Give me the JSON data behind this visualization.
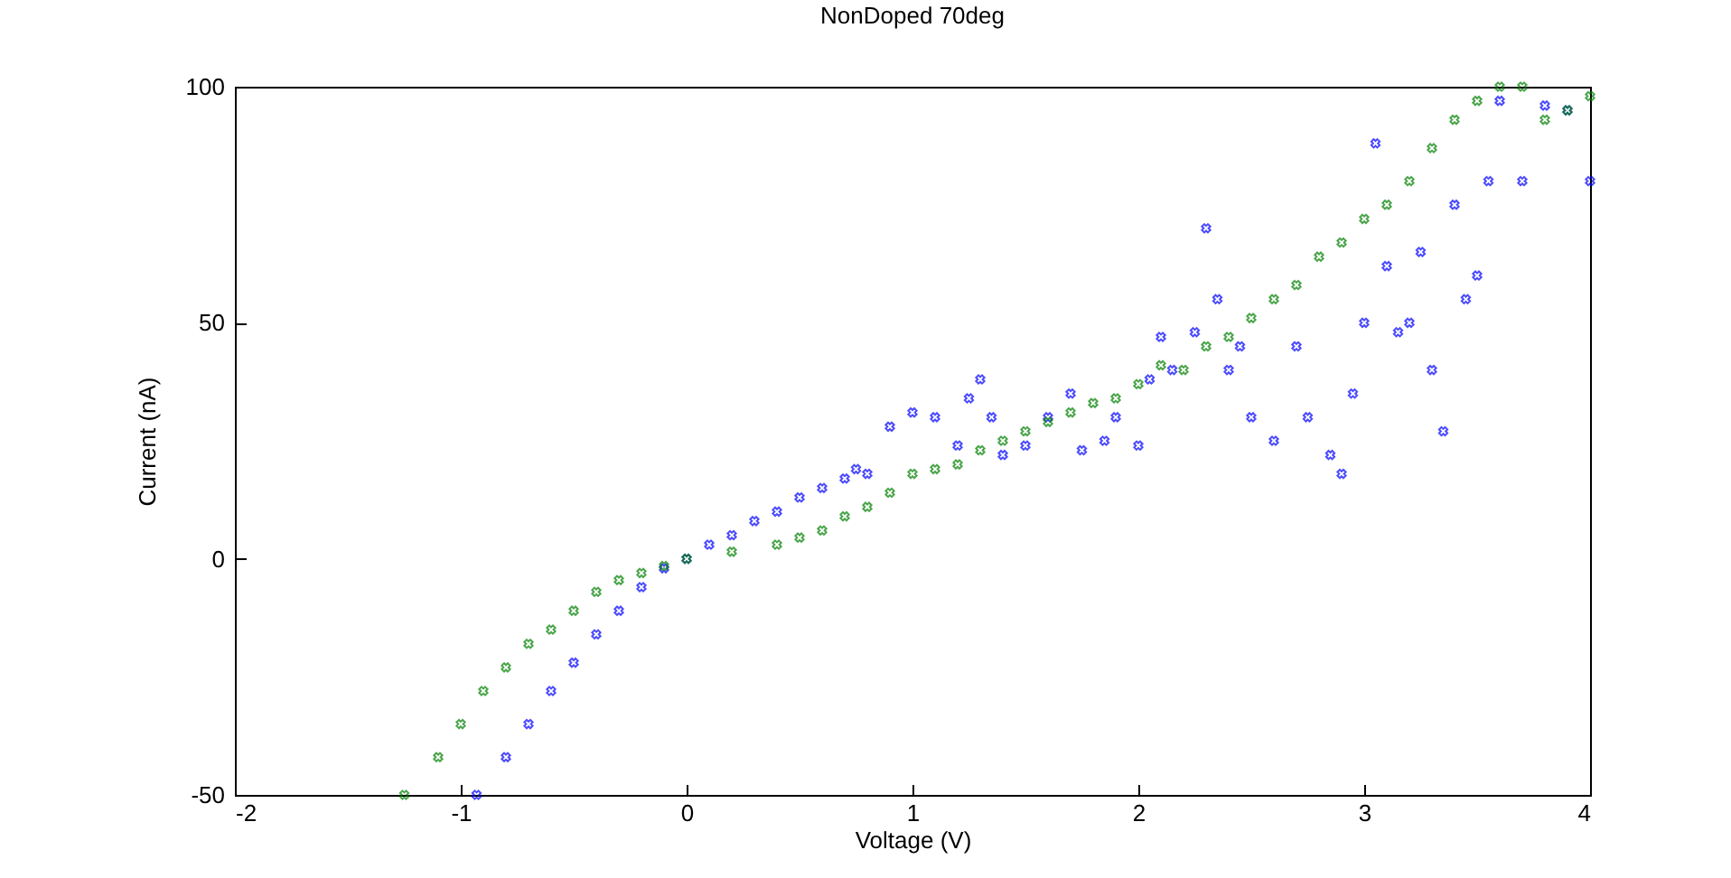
{
  "chart_data": {
    "type": "scatter",
    "title": "NonDoped 70deg",
    "xlabel": "Voltage (V)",
    "ylabel": "Current (nA)",
    "xlim": [
      -2,
      4
    ],
    "ylim": [
      -50,
      100
    ],
    "xticks": [
      -2,
      -1,
      0,
      1,
      2,
      3,
      4
    ],
    "yticks": [
      -50,
      0,
      50,
      100
    ],
    "grid": false,
    "marker": "cross",
    "series": [
      {
        "color": "#0000ff",
        "x": [
          -0.93,
          -0.8,
          -0.7,
          -0.6,
          -0.5,
          -0.4,
          -0.3,
          -0.2,
          -0.1,
          0,
          0.1,
          0.2,
          0.3,
          0.4,
          0.5,
          0.6,
          0.7,
          0.75,
          0.8,
          0.9,
          1.0,
          1.1,
          1.2,
          1.25,
          1.3,
          1.35,
          1.4,
          1.5,
          1.6,
          1.7,
          1.75,
          1.85,
          1.9,
          2.0,
          2.05,
          2.1,
          2.15,
          2.25,
          2.3,
          2.35,
          2.4,
          2.45,
          2.5,
          2.6,
          2.7,
          2.75,
          2.85,
          2.9,
          2.95,
          3.0,
          3.05,
          3.1,
          3.15,
          3.2,
          3.25,
          3.3,
          3.35,
          3.4,
          3.45,
          3.5,
          3.55,
          3.6,
          3.7,
          3.8,
          3.9,
          4.0
        ],
        "values": [
          -50,
          -42,
          -35,
          -28,
          -22,
          -16,
          -11,
          -6,
          -2,
          0,
          3,
          5,
          8,
          10,
          13,
          15,
          17,
          19,
          18,
          28,
          31,
          30,
          24,
          34,
          38,
          30,
          22,
          24,
          30,
          35,
          23,
          25,
          30,
          24,
          38,
          47,
          40,
          48,
          70,
          55,
          40,
          45,
          30,
          25,
          45,
          30,
          22,
          18,
          35,
          50,
          88,
          62,
          48,
          50,
          65,
          40,
          27,
          75,
          55,
          60,
          80,
          97,
          80,
          96,
          95,
          80
        ]
      },
      {
        "color": "#008000",
        "x": [
          -1.25,
          -1.1,
          -1.0,
          -0.9,
          -0.8,
          -0.7,
          -0.6,
          -0.5,
          -0.4,
          -0.3,
          -0.2,
          -0.1,
          0,
          0.2,
          0.4,
          0.5,
          0.6,
          0.7,
          0.8,
          0.9,
          1.0,
          1.1,
          1.2,
          1.3,
          1.4,
          1.5,
          1.6,
          1.7,
          1.8,
          1.9,
          2.0,
          2.1,
          2.2,
          2.3,
          2.4,
          2.5,
          2.6,
          2.7,
          2.8,
          2.9,
          3.0,
          3.1,
          3.2,
          3.3,
          3.4,
          3.5,
          3.6,
          3.7,
          3.8,
          3.9,
          4.0
        ],
        "values": [
          -50,
          -42,
          -35,
          -28,
          -23,
          -18,
          -15,
          -11,
          -7,
          -4.5,
          -3,
          -1.5,
          0,
          1.5,
          3,
          4.5,
          6,
          9,
          11,
          14,
          18,
          19,
          20,
          23,
          25,
          27,
          29,
          31,
          33,
          34,
          37,
          41,
          40,
          45,
          47,
          51,
          55,
          58,
          64,
          67,
          72,
          75,
          80,
          87,
          93,
          97,
          100,
          100,
          93,
          95,
          98
        ]
      }
    ]
  }
}
